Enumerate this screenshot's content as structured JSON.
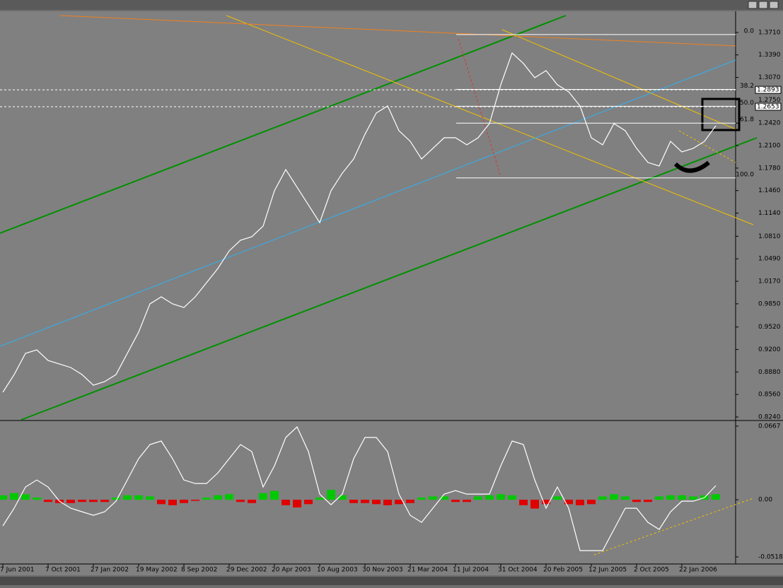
{
  "chart_data": [
    {
      "type": "line",
      "color": "#ffffff",
      "categories": [
        "7 Jun 2001",
        null,
        null,
        null,
        "7 Oct 2001",
        null,
        null,
        null,
        "27 Jan 2002",
        null,
        null,
        null,
        "19 May 2002",
        null,
        null,
        null,
        "8 Sep 2002",
        null,
        null,
        null,
        "29 Dec 2002",
        null,
        null,
        null,
        "20 Apr 2003",
        null,
        null,
        null,
        "10 Aug 2003",
        null,
        null,
        null,
        "30 Nov 2003",
        null,
        null,
        null,
        "21 Mar 2004",
        null,
        null,
        null,
        "11 Jul 2004",
        null,
        null,
        null,
        "31 Oct 2004",
        null,
        null,
        null,
        "20 Feb 2005",
        null,
        null,
        null,
        "12 Jun 2005",
        null,
        null,
        null,
        "2 Oct 2005",
        null,
        null,
        null,
        "22 Jan 2006",
        null,
        null,
        null
      ],
      "values": [
        0.8592,
        0.8843,
        0.9145,
        0.9195,
        0.9044,
        0.8994,
        0.8944,
        0.8843,
        0.8692,
        0.8743,
        0.8843,
        0.9145,
        0.9447,
        0.9849,
        0.9949,
        0.9849,
        0.9798,
        0.9949,
        1.015,
        1.0352,
        1.0603,
        1.0754,
        1.0804,
        1.0955,
        1.1458,
        1.1759,
        1.1508,
        1.1257,
        1.1005,
        1.1458,
        1.1709,
        1.191,
        1.2262,
        1.2564,
        1.2664,
        1.2312,
        1.2161,
        1.191,
        1.2061,
        1.2212,
        1.2212,
        1.2111,
        1.2212,
        1.2413,
        1.2966,
        1.3418,
        1.3268,
        1.3066,
        1.3167,
        1.2966,
        1.2865,
        1.2664,
        1.2212,
        1.2111,
        1.2413,
        1.2312,
        1.2061,
        1.186,
        1.181,
        1.2161,
        1.2011,
        1.2061,
        1.2161,
        1.2383
      ],
      "ylim": [
        0.82,
        1.395
      ],
      "yticks": [
        {
          "value": 1.371,
          "label": "1.3710"
        },
        {
          "value": 1.339,
          "label": "1.3390"
        },
        {
          "value": 1.307,
          "label": "1.3070"
        },
        {
          "value": 1.275,
          "label": "1.2750"
        },
        {
          "value": 1.242,
          "label": "1.2420"
        },
        {
          "value": 1.21,
          "label": "1.2100"
        },
        {
          "value": 1.178,
          "label": "1.1780"
        },
        {
          "value": 1.146,
          "label": "1.1460"
        },
        {
          "value": 1.114,
          "label": "1.1140"
        },
        {
          "value": 1.081,
          "label": "1.0810"
        },
        {
          "value": 1.049,
          "label": "1.0490"
        },
        {
          "value": 1.017,
          "label": "1.0170"
        },
        {
          "value": 0.985,
          "label": "0.9850"
        },
        {
          "value": 0.952,
          "label": "0.9520"
        },
        {
          "value": 0.92,
          "label": "0.9200"
        },
        {
          "value": 0.888,
          "label": "0.8880"
        },
        {
          "value": 0.856,
          "label": "0.8560"
        },
        {
          "value": 0.824,
          "label": "0.8240"
        }
      ],
      "fib_levels": [
        {
          "value": 1.368,
          "label": "0.0"
        },
        {
          "value": 1.29,
          "label": "38.2"
        },
        {
          "value": 1.266,
          "label": "50.0"
        },
        {
          "value": 1.242,
          "label": "61.8"
        },
        {
          "value": 1.164,
          "label": "100.0"
        }
      ],
      "price_labels": [
        {
          "value": 1.2893,
          "label": "1.2893"
        },
        {
          "value": 1.2653,
          "label": "1.2653"
        }
      ]
    },
    {
      "type": "combo",
      "series": [
        {
          "type": "bar",
          "color": "#00c800",
          "negative_color": "#e00000",
          "values": [
            0.004,
            0.006,
            0.005,
            0.002,
            -0.002,
            -0.003,
            -0.003,
            -0.002,
            -0.002,
            -0.002,
            0.002,
            0.004,
            0.004,
            0.003,
            -0.004,
            -0.005,
            -0.003,
            -0.001,
            0.002,
            0.004,
            0.005,
            -0.002,
            -0.003,
            0.006,
            0.008,
            -0.005,
            -0.007,
            -0.004,
            0.002,
            0.009,
            0.004,
            -0.003,
            -0.003,
            -0.004,
            -0.005,
            -0.004,
            -0.003,
            0.002,
            0.003,
            0.003,
            -0.002,
            -0.002,
            0.003,
            0.004,
            0.005,
            0.004,
            -0.005,
            -0.008,
            -0.004,
            0.003,
            -0.004,
            -0.005,
            -0.004,
            0.003,
            0.005,
            0.003,
            -0.002,
            -0.002,
            0.003,
            0.004,
            0.004,
            0.003,
            0.004,
            0.005
          ]
        },
        {
          "type": "line",
          "color": "#ffffff",
          "values": [
            -0.0237,
            -0.0077,
            0.0115,
            0.0179,
            0.0115,
            -0.0013,
            -0.0077,
            -0.0109,
            -0.0141,
            -0.0109,
            -0.0013,
            0.0179,
            0.0372,
            0.05,
            0.0532,
            0.0372,
            0.0179,
            0.0147,
            0.0147,
            0.0243,
            0.0372,
            0.05,
            0.0436,
            0.0115,
            0.0307,
            0.0564,
            0.066,
            0.0436,
            0.0051,
            -0.0045,
            0.0051,
            0.0372,
            0.0564,
            0.0564,
            0.0436,
            0.0051,
            -0.0141,
            -0.0205,
            -0.0077,
            0.0051,
            0.0083,
            0.0051,
            0.0051,
            0.0051,
            0.0307,
            0.0532,
            0.05,
            0.0179,
            -0.0077,
            0.0115,
            -0.0077,
            -0.0461,
            -0.0461,
            -0.0461,
            -0.0269,
            -0.0077,
            -0.0077,
            -0.0205,
            -0.0269,
            -0.0109,
            -0.0013,
            -0.0013,
            0.0019,
            0.0128
          ]
        }
      ],
      "ylim": [
        -0.0582,
        0.0705
      ],
      "yticks": [
        {
          "value": 0.0667,
          "label": "0.0667"
        },
        {
          "value": 0,
          "label": "0.00"
        },
        {
          "value": -0.0518,
          "label": "-0.0518"
        }
      ]
    }
  ]
}
